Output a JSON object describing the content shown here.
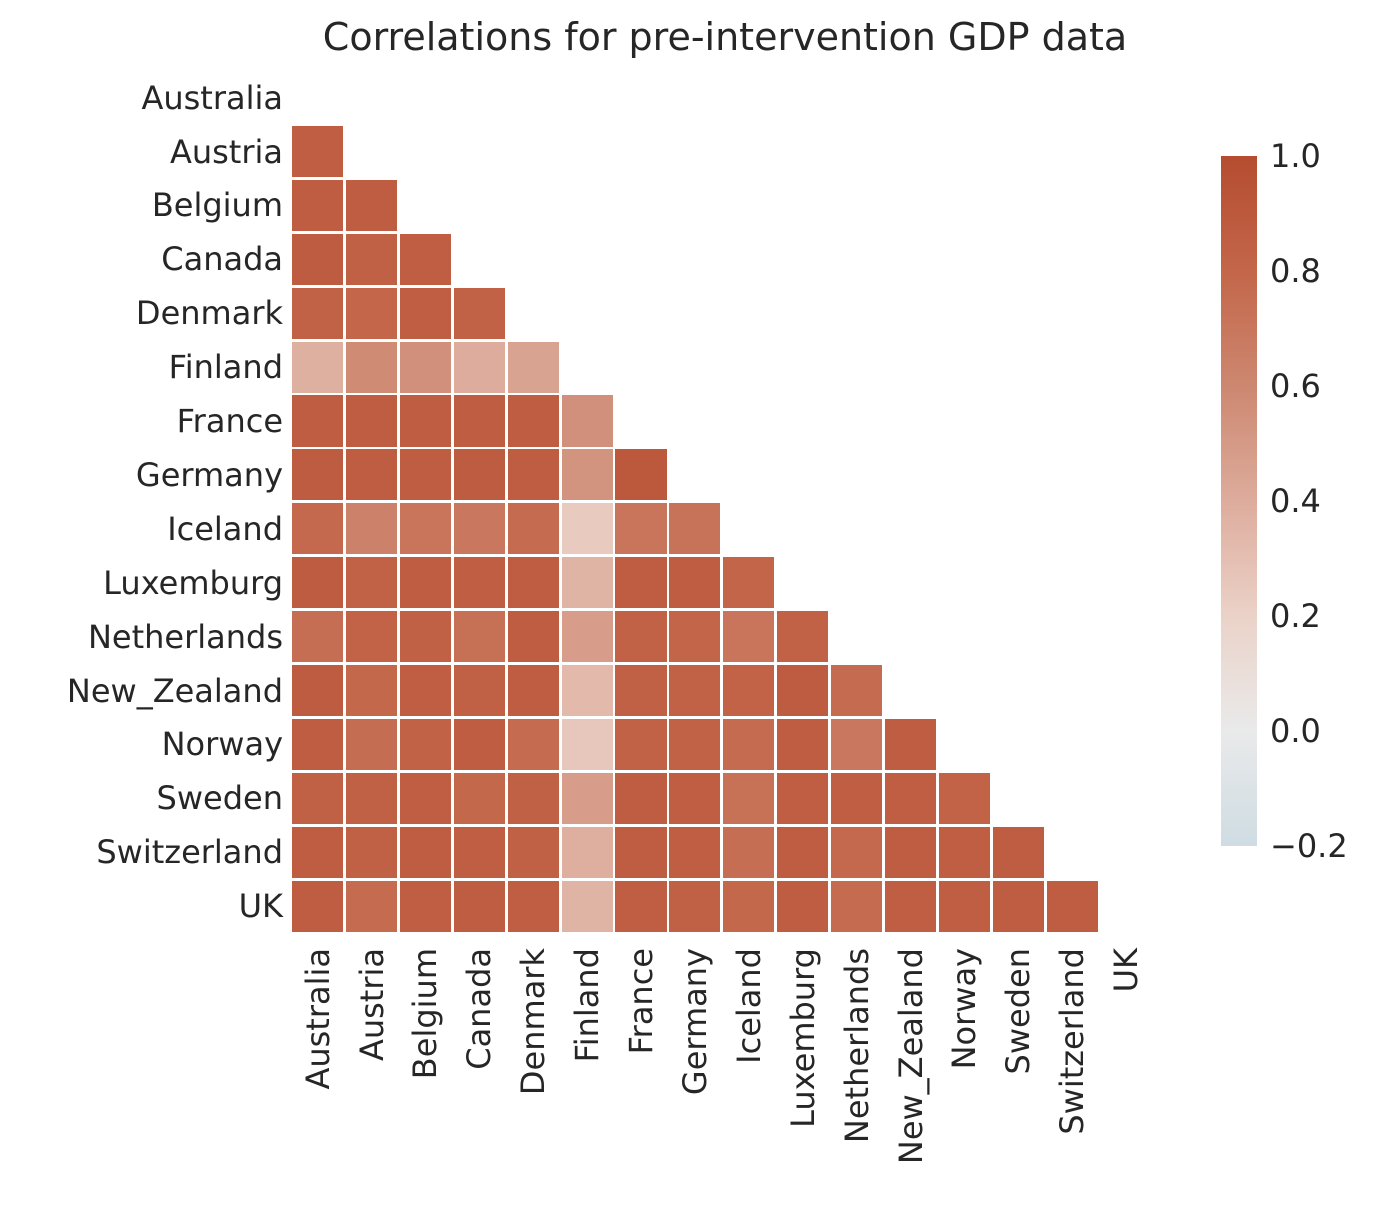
{
  "chart_data": {
    "type": "heatmap",
    "title": "Correlations for pre-intervention GDP data",
    "categories": [
      "Australia",
      "Austria",
      "Belgium",
      "Canada",
      "Denmark",
      "Finland",
      "France",
      "Germany",
      "Iceland",
      "Luxemburg",
      "Netherlands",
      "New_Zealand",
      "Norway",
      "Sweden",
      "Switzerland",
      "UK"
    ],
    "mask": "upper-triangle-and-diagonal-hidden",
    "values_lower_triangle": [
      [],
      [
        0.86
      ],
      [
        0.87,
        0.87
      ],
      [
        0.88,
        0.85,
        0.86
      ],
      [
        0.83,
        0.8,
        0.86,
        0.83
      ],
      [
        0.38,
        0.58,
        0.55,
        0.4,
        0.45
      ],
      [
        0.87,
        0.87,
        0.87,
        0.87,
        0.87,
        0.55
      ],
      [
        0.88,
        0.87,
        0.87,
        0.88,
        0.87,
        0.53,
        0.9
      ],
      [
        0.78,
        0.63,
        0.71,
        0.69,
        0.77,
        0.24,
        0.71,
        0.72
      ],
      [
        0.88,
        0.83,
        0.87,
        0.86,
        0.87,
        0.36,
        0.87,
        0.87,
        0.81
      ],
      [
        0.75,
        0.82,
        0.84,
        0.74,
        0.87,
        0.48,
        0.83,
        0.81,
        0.71,
        0.83
      ],
      [
        0.88,
        0.79,
        0.86,
        0.84,
        0.87,
        0.33,
        0.84,
        0.83,
        0.82,
        0.88,
        0.77
      ],
      [
        0.87,
        0.76,
        0.83,
        0.87,
        0.77,
        0.26,
        0.83,
        0.83,
        0.77,
        0.87,
        0.69,
        0.87
      ],
      [
        0.84,
        0.84,
        0.86,
        0.79,
        0.84,
        0.48,
        0.87,
        0.86,
        0.73,
        0.86,
        0.86,
        0.86,
        0.82
      ],
      [
        0.87,
        0.84,
        0.87,
        0.86,
        0.84,
        0.39,
        0.87,
        0.86,
        0.75,
        0.87,
        0.78,
        0.87,
        0.86,
        0.87
      ],
      [
        0.87,
        0.77,
        0.86,
        0.87,
        0.86,
        0.36,
        0.86,
        0.84,
        0.79,
        0.87,
        0.77,
        0.86,
        0.86,
        0.87,
        0.87
      ]
    ],
    "vmin": -0.2,
    "vmax": 1.0,
    "colormap_stops": [
      [
        -0.2,
        "#cfdce3"
      ],
      [
        0.0,
        "#e9eaea"
      ],
      [
        0.2,
        "#ebd2c8"
      ],
      [
        0.4,
        "#ddac9c"
      ],
      [
        0.6,
        "#cd8770"
      ],
      [
        0.8,
        "#c3664a"
      ],
      [
        1.0,
        "#b54c30"
      ]
    ],
    "colorbar": {
      "position": "right",
      "ticks": [
        {
          "label": "1.0",
          "value": 1.0
        },
        {
          "label": "0.8",
          "value": 0.8
        },
        {
          "label": "0.6",
          "value": 0.6
        },
        {
          "label": "0.4",
          "value": 0.4
        },
        {
          "label": "0.2",
          "value": 0.2
        },
        {
          "label": "0.0",
          "value": 0.0
        },
        {
          "label": "−0.2",
          "value": -0.2
        }
      ]
    },
    "grid_lines": "white",
    "legend": "none"
  }
}
